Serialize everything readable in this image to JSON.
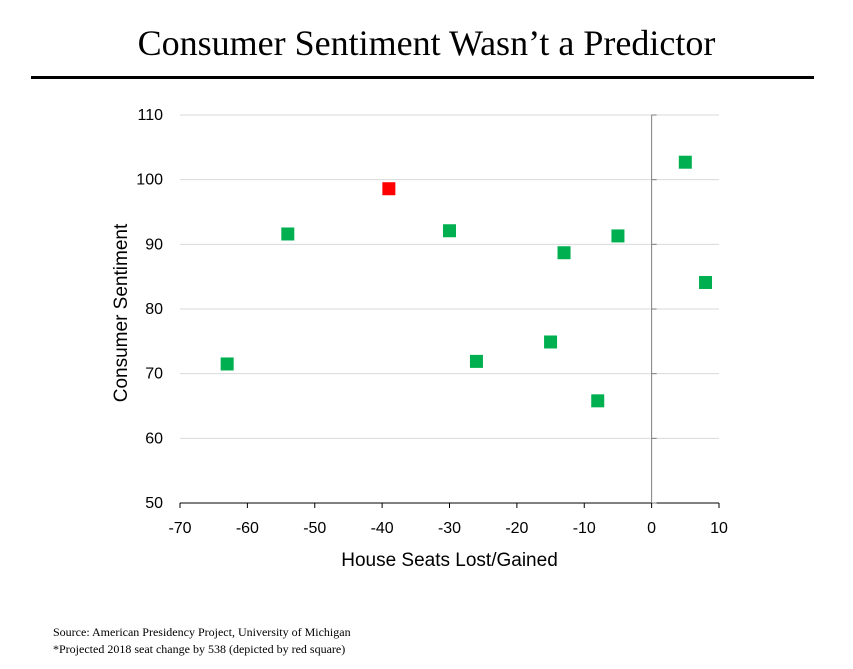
{
  "title": "Consumer Sentiment Wasn’t a Predictor",
  "source_line": "Source: American Presidency Project, University  of Michigan",
  "note_line": "*Projected 2018 seat change by 538 (depicted by red square)",
  "colors": {
    "point": "#00b050",
    "highlight": "#ff0000",
    "axis": "#000000",
    "grid": "#d9d9d9"
  },
  "chart_data": {
    "type": "scatter",
    "xlabel": "House Seats Lost/Gained",
    "ylabel": "Consumer Sentiment",
    "xlim": [
      -70,
      10
    ],
    "ylim": [
      50,
      110
    ],
    "xticks": [
      "-70",
      "-60",
      "-50",
      "-40",
      "-30",
      "-20",
      "-10",
      "0",
      "10"
    ],
    "yticks": [
      "50",
      "60",
      "70",
      "80",
      "90",
      "100",
      "110"
    ],
    "grid": "horizontal",
    "points": [
      {
        "x": -63,
        "y": 71.5,
        "highlight": false
      },
      {
        "x": -54,
        "y": 91.6,
        "highlight": false
      },
      {
        "x": -39,
        "y": 98.6,
        "highlight": true
      },
      {
        "x": -30,
        "y": 92.1,
        "highlight": false
      },
      {
        "x": -26,
        "y": 71.9,
        "highlight": false
      },
      {
        "x": -15,
        "y": 74.9,
        "highlight": false
      },
      {
        "x": -13,
        "y": 88.7,
        "highlight": false
      },
      {
        "x": -8,
        "y": 65.8,
        "highlight": false
      },
      {
        "x": -5,
        "y": 91.3,
        "highlight": false
      },
      {
        "x": 5,
        "y": 102.7,
        "highlight": false
      },
      {
        "x": 8,
        "y": 84.1,
        "highlight": false
      }
    ]
  }
}
